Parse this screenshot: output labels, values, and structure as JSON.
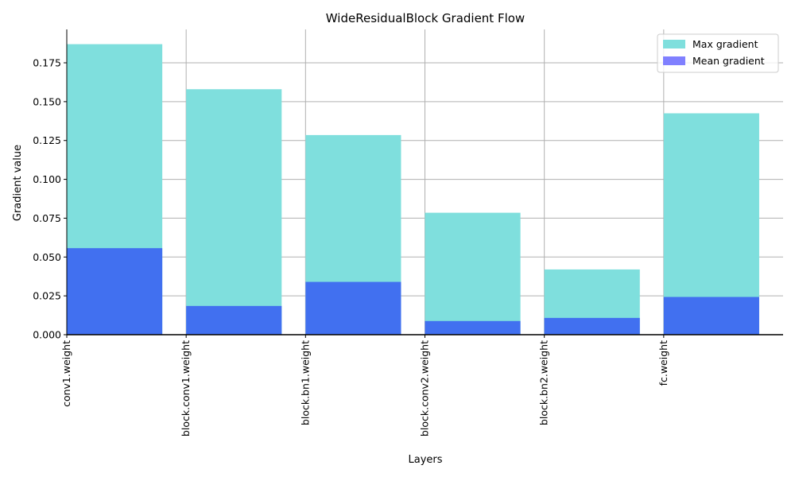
{
  "chart_data": {
    "type": "bar",
    "title": "WideResidualBlock Gradient Flow",
    "xlabel": "Layers",
    "ylabel": "Gradient value",
    "categories": [
      "conv1.weight",
      "block.conv1.weight",
      "block.bn1.weight",
      "block.conv2.weight",
      "block.bn2.weight",
      "fc.weight"
    ],
    "series": [
      {
        "name": "Max gradient",
        "values": [
          0.187,
          0.158,
          0.1285,
          0.0785,
          0.042,
          0.1425
        ],
        "color": "#7fdfdd"
      },
      {
        "name": "Mean gradient",
        "values": [
          0.0557,
          0.0185,
          0.034,
          0.0088,
          0.0108,
          0.0243
        ],
        "color": "#4170f0"
      }
    ],
    "legend_colors": [
      "#7fdfdd",
      "#8080ff"
    ],
    "ylim": [
      0,
      0.1965
    ],
    "yticks": [
      0.0,
      0.025,
      0.05,
      0.075,
      0.1,
      0.125,
      0.15,
      0.175
    ],
    "ytick_labels": [
      "0.000",
      "0.025",
      "0.050",
      "0.075",
      "0.100",
      "0.125",
      "0.150",
      "0.175"
    ],
    "grid": true,
    "legend_position": "top-right"
  }
}
